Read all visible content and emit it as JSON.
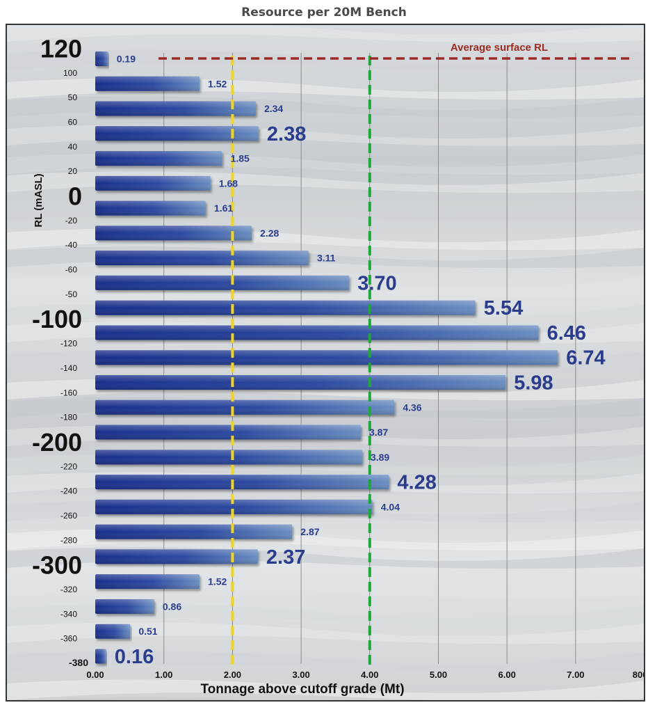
{
  "chart_data": {
    "type": "bar",
    "orientation": "horizontal",
    "title": "Resource per 20M Bench",
    "xlabel": "Tonnage above cutoff grade (Mt)",
    "ylabel": "RL (mASL)",
    "xlim": [
      0,
      8
    ],
    "x_tick_labels": [
      "0.00",
      "1.00",
      "2.00",
      "3.00",
      "4.00",
      "5.00",
      "6.00",
      "7.00",
      "800"
    ],
    "y_tick_labels": [
      {
        "text": "120",
        "emphasis": true
      },
      {
        "text": "100",
        "emphasis": false
      },
      {
        "text": "50",
        "emphasis": false
      },
      {
        "text": "60",
        "emphasis": false
      },
      {
        "text": "40",
        "emphasis": false
      },
      {
        "text": "20",
        "emphasis": false
      },
      {
        "text": "0",
        "emphasis": true
      },
      {
        "text": "-20",
        "emphasis": false
      },
      {
        "text": "-40",
        "emphasis": false
      },
      {
        "text": "-60",
        "emphasis": false
      },
      {
        "text": "-50",
        "emphasis": false
      },
      {
        "text": "-100",
        "emphasis": true
      },
      {
        "text": "-120",
        "emphasis": false
      },
      {
        "text": "-140",
        "emphasis": false
      },
      {
        "text": "-160",
        "emphasis": false
      },
      {
        "text": "-180",
        "emphasis": false
      },
      {
        "text": "-200",
        "emphasis": true
      },
      {
        "text": "-220",
        "emphasis": false
      },
      {
        "text": "-240",
        "emphasis": false
      },
      {
        "text": "-260",
        "emphasis": false
      },
      {
        "text": "-280",
        "emphasis": false
      },
      {
        "text": "-300",
        "emphasis": true
      },
      {
        "text": "-320",
        "emphasis": false
      },
      {
        "text": "-340",
        "emphasis": false
      },
      {
        "text": "-360",
        "emphasis": false
      },
      {
        "text": "-380",
        "emphasis": false
      }
    ],
    "bars": [
      {
        "label": "0.19",
        "value": 0.19,
        "large": false
      },
      {
        "label": "1.52",
        "value": 1.52,
        "large": false
      },
      {
        "label": "2.34",
        "value": 2.34,
        "large": false
      },
      {
        "label": "2.38",
        "value": 2.38,
        "large": true
      },
      {
        "label": "1.85",
        "value": 1.85,
        "large": false
      },
      {
        "label": "1.68",
        "value": 1.68,
        "large": false
      },
      {
        "label": "1.61",
        "value": 1.61,
        "large": false
      },
      {
        "label": "2.28",
        "value": 2.28,
        "large": false
      },
      {
        "label": "3.11",
        "value": 3.11,
        "large": false
      },
      {
        "label": "3.70",
        "value": 3.7,
        "large": true
      },
      {
        "label": "5.54",
        "value": 5.54,
        "large": true
      },
      {
        "label": "6.46",
        "value": 6.46,
        "large": true
      },
      {
        "label": "6.74",
        "value": 6.74,
        "large": true
      },
      {
        "label": "5.98",
        "value": 5.98,
        "large": true
      },
      {
        "label": "4.36",
        "value": 4.36,
        "large": false
      },
      {
        "label": "3.87",
        "value": 3.87,
        "large": false
      },
      {
        "label": "3.89",
        "value": 3.89,
        "large": false
      },
      {
        "label": "4.28",
        "value": 4.28,
        "large": true
      },
      {
        "label": "4.04",
        "value": 4.04,
        "large": false
      },
      {
        "label": "2.87",
        "value": 2.87,
        "large": false
      },
      {
        "label": "2.37",
        "value": 2.37,
        "large": true
      },
      {
        "label": "1.52",
        "value": 1.52,
        "large": false
      },
      {
        "label": "0.86",
        "value": 0.86,
        "large": false
      },
      {
        "label": "0.51",
        "value": 0.51,
        "large": false
      },
      {
        "label": "0.16",
        "value": 0.16,
        "large": true
      }
    ],
    "reference_lines": [
      {
        "value": 2,
        "color": "#f2d41c",
        "style": "dashed"
      },
      {
        "value": 4,
        "color": "#1fa83a",
        "style": "dashed"
      }
    ],
    "annotation": {
      "text": "Average surface RL",
      "color": "#9b2a23"
    },
    "grid": "vertical",
    "colors": {
      "bar": "#27419a",
      "label": "#2a3c8c",
      "grid": "#8c8c8c"
    }
  }
}
